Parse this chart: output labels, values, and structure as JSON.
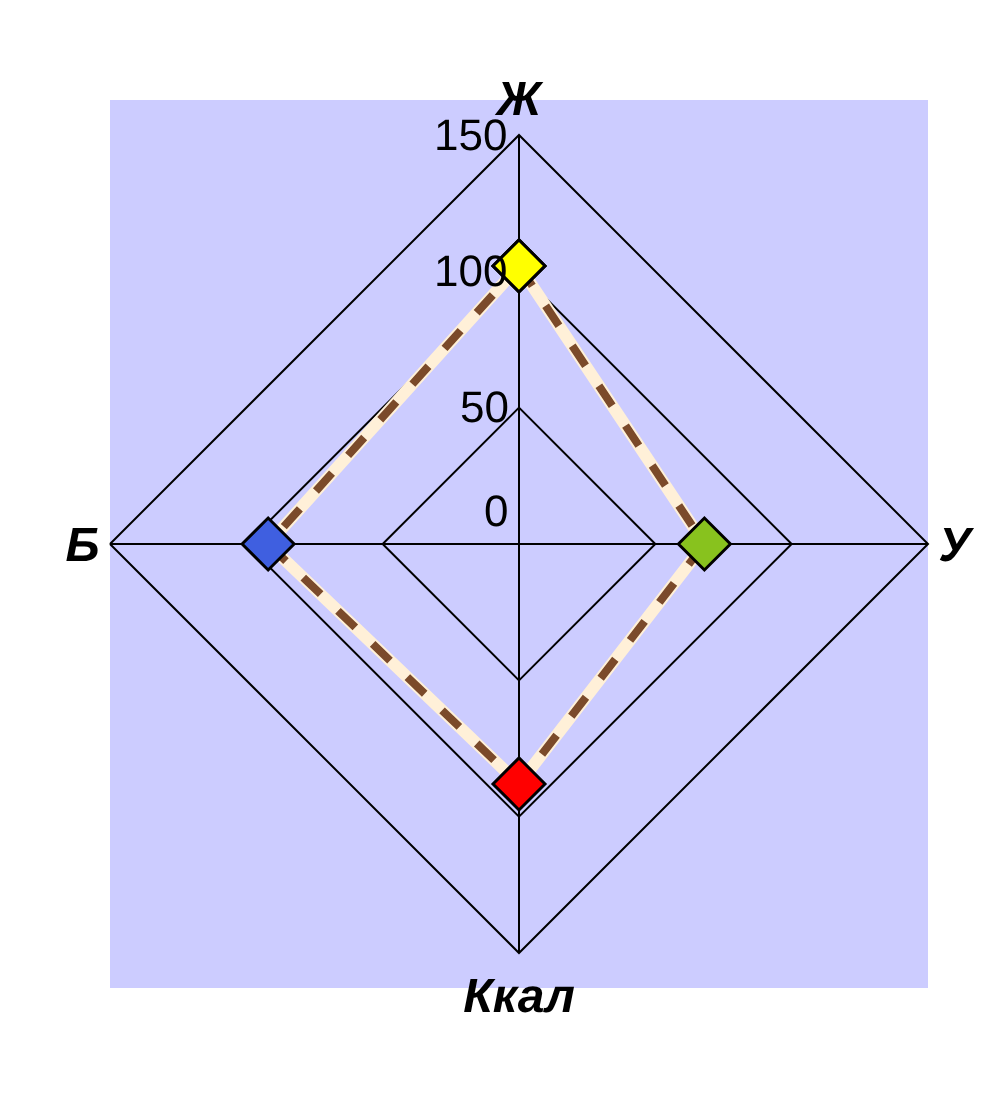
{
  "chart_data": {
    "type": "radar",
    "categories": [
      "Ж",
      "У",
      "Ккал",
      "Б"
    ],
    "series": [
      {
        "color": "#7b4a2a",
        "colors": [
          "#ffff00",
          "#88c21e",
          "#ff0000",
          "#3f5fe0"
        ],
        "values": [
          102,
          68,
          88,
          92
        ]
      }
    ],
    "ylim": [
      0,
      150
    ],
    "yticks": [
      0,
      50,
      100,
      150
    ],
    "grid": true,
    "marker": "diamond",
    "line_style": "dashed"
  }
}
